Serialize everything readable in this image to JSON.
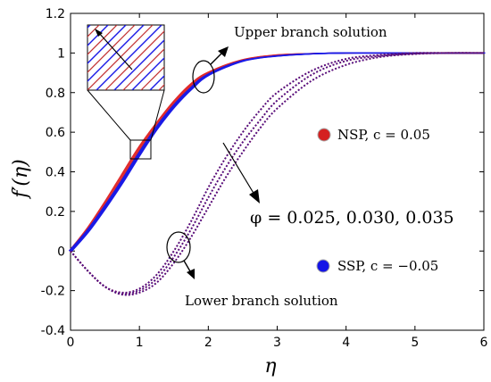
{
  "chart_data": {
    "type": "line",
    "xlabel": "η",
    "ylabel": "f′(η)",
    "xlim": [
      0,
      6
    ],
    "ylim": [
      -0.4,
      1.2
    ],
    "x_ticks": [
      "0",
      "1",
      "2",
      "3",
      "4",
      "5",
      "6"
    ],
    "y_ticks": [
      "-0.4",
      "-0.2",
      "0",
      "0.2",
      "0.4",
      "0.6",
      "0.8",
      "1",
      "1.2"
    ],
    "grid": false,
    "legend_position": "right",
    "legend": [
      {
        "label": "NSP, c = 0.05",
        "color": "#d42020"
      },
      {
        "label": "SSP, c = −0.05",
        "color": "#1414e6"
      }
    ],
    "annotations": {
      "upper": "Upper branch solution",
      "lower": "Lower branch solution",
      "phi": "φ = 0.025, 0.030, 0.035"
    },
    "phi_values": [
      0.025,
      0.03,
      0.035
    ],
    "upper_branch": {
      "x": [
        0,
        0.25,
        0.5,
        0.75,
        1.0,
        1.25,
        1.5,
        1.75,
        2.0,
        2.5,
        3.0,
        3.5,
        4.0,
        4.5,
        5.0,
        6.0
      ],
      "nsp": [
        0,
        0.11,
        0.24,
        0.38,
        0.52,
        0.64,
        0.75,
        0.84,
        0.9,
        0.965,
        0.99,
        0.997,
        1.0,
        1.0,
        1.0,
        1.0
      ],
      "ssp": [
        0,
        0.1,
        0.22,
        0.35,
        0.49,
        0.62,
        0.73,
        0.82,
        0.89,
        0.96,
        0.985,
        0.996,
        1.0,
        1.0,
        1.0,
        1.0
      ]
    },
    "lower_branch": {
      "x": [
        0,
        0.25,
        0.5,
        0.75,
        1.0,
        1.25,
        1.5,
        1.75,
        2.0,
        2.25,
        2.5,
        2.75,
        3.0,
        3.5,
        4.0,
        4.5,
        5.0,
        5.5,
        6.0
      ],
      "series": [
        {
          "phi": 0.025,
          "values": [
            0,
            -0.1,
            -0.18,
            -0.21,
            -0.19,
            -0.12,
            0.0,
            0.15,
            0.32,
            0.47,
            0.6,
            0.71,
            0.8,
            0.91,
            0.97,
            0.99,
            1.0,
            1.0,
            1.0
          ]
        },
        {
          "phi": 0.03,
          "values": [
            0,
            -0.1,
            -0.18,
            -0.215,
            -0.2,
            -0.14,
            -0.03,
            0.11,
            0.27,
            0.42,
            0.55,
            0.66,
            0.76,
            0.89,
            0.96,
            0.985,
            0.997,
            1.0,
            1.0
          ]
        },
        {
          "phi": 0.035,
          "values": [
            0,
            -0.1,
            -0.18,
            -0.22,
            -0.21,
            -0.16,
            -0.06,
            0.07,
            0.22,
            0.37,
            0.5,
            0.62,
            0.72,
            0.86,
            0.94,
            0.98,
            0.995,
            1.0,
            1.0
          ]
        }
      ]
    }
  }
}
